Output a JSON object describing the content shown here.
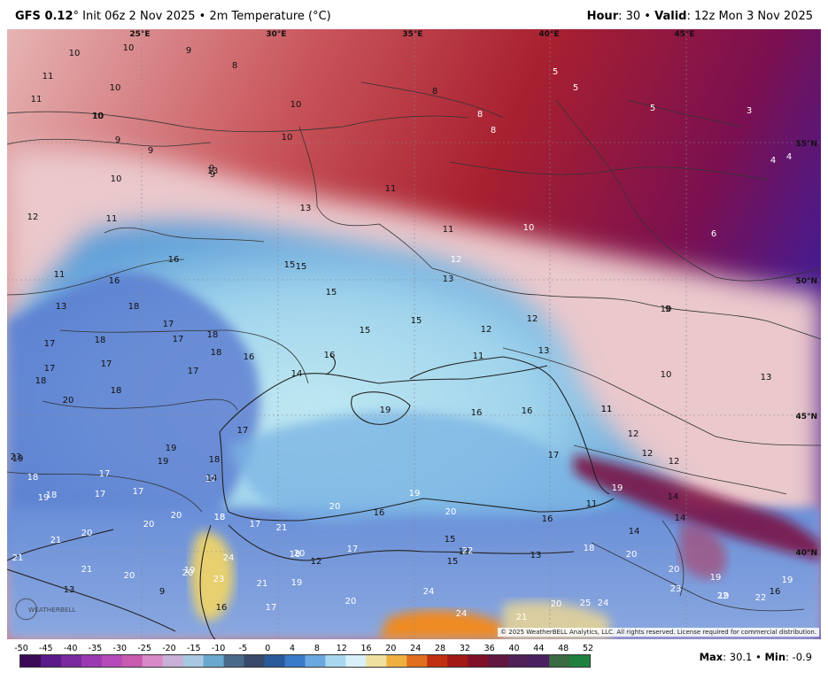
{
  "header": {
    "model": "GFS 0.12",
    "init": "° Init 06z 2 Nov 2025 • 2m Temperature (°C)",
    "hour_label": "Hour",
    "hour_value": ": 30 • ",
    "valid_label": "Valid",
    "valid_value": ": 12z Mon 3 Nov 2025"
  },
  "map": {
    "lon_labels": [
      "25°E",
      "30°E",
      "35°E",
      "40°E",
      "45°E"
    ],
    "lat_labels": [
      "55°N",
      "50°N",
      "45°N",
      "40°N"
    ],
    "temperature_labels": [
      "10",
      "10",
      "9",
      "8",
      "11",
      "10",
      "10",
      "11",
      "9",
      "10",
      "10",
      "9",
      "9",
      "10",
      "5",
      "5",
      "5",
      "3",
      "4",
      "4",
      "8",
      "8",
      "8",
      "9",
      "10",
      "11",
      "13",
      "13",
      "11",
      "12",
      "11",
      "13",
      "11",
      "10",
      "12",
      "13",
      "6",
      "16",
      "16",
      "15",
      "15",
      "15",
      "10",
      "13",
      "18",
      "17",
      "17",
      "17",
      "15",
      "15",
      "12",
      "12",
      "9",
      "17",
      "18",
      "17",
      "18",
      "18",
      "13",
      "16",
      "14",
      "11",
      "11",
      "20",
      "18",
      "18",
      "17",
      "16",
      "19",
      "16",
      "16",
      "11",
      "10",
      "12",
      "17",
      "18",
      "19",
      "19",
      "18",
      "17",
      "12",
      "12",
      "19",
      "18",
      "17",
      "17",
      "19",
      "17",
      "20",
      "17",
      "19",
      "14",
      "14",
      "11",
      "20",
      "19",
      "18",
      "20",
      "23",
      "21",
      "18",
      "17",
      "16",
      "16",
      "14",
      "20",
      "24",
      "21",
      "20",
      "20",
      "19",
      "19",
      "17",
      "15",
      "13",
      "13",
      "18",
      "14",
      "21",
      "20",
      "23",
      "21",
      "20",
      "18",
      "12",
      "15",
      "24",
      "22",
      "21",
      "20",
      "20",
      "19",
      "19",
      "19",
      "16",
      "13",
      "16",
      "17",
      "9",
      "20",
      "24",
      "21",
      "20",
      "25",
      "24",
      "23",
      "22",
      "22"
    ],
    "copyright": "© 2025 WeatherBELL Analytics, LLC. All rights reserved. License required for commercial distribution.",
    "logo_text": "WEATHERBELL"
  },
  "colorbar": {
    "ticks": [
      "-50",
      "-45",
      "-40",
      "-35",
      "-30",
      "-25",
      "-20",
      "-15",
      "-10",
      "-5",
      "0",
      "4",
      "8",
      "12",
      "16",
      "20",
      "24",
      "28",
      "32",
      "36",
      "40",
      "44",
      "48",
      "52"
    ],
    "colors": [
      "#3a0a57",
      "#5a1a8a",
      "#7a2a9e",
      "#9b3ab0",
      "#b54ab8",
      "#c85ab0",
      "#d88ac8",
      "#c8b0d8",
      "#a8c8e0",
      "#6aa8d0",
      "#4a6a8a",
      "#3a4a6a",
      "#2a5a9a",
      "#3a7ac8",
      "#6aa8e0",
      "#a8d8f0",
      "#d8f0f8",
      "#f0e0a0",
      "#f0b040",
      "#e07020",
      "#c03010",
      "#a01818",
      "#801028",
      "#601840",
      "#502058",
      "#4a2060",
      "#3a6a40",
      "#208040"
    ]
  },
  "stats": {
    "max_label": "Max",
    "max_value": ": 30.1 • ",
    "min_label": "Min",
    "min_value": ": -0.9"
  }
}
